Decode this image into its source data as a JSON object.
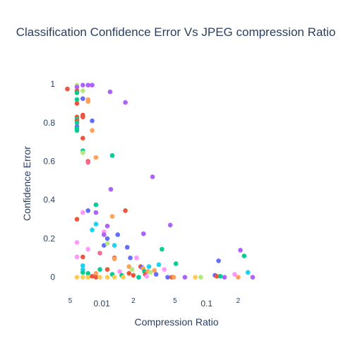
{
  "chart_data": {
    "type": "scatter",
    "title": "Classification Confidence Error Vs JPEG compression Ratio",
    "xlabel": "Compression Ratio",
    "ylabel": "Confidence Error",
    "x_scale": "log",
    "xlim": [
      0.0037,
      0.72
    ],
    "ylim": [
      -0.1,
      1.07
    ],
    "x_ticks": [
      {
        "value": 0.005,
        "label": "5",
        "minor": true
      },
      {
        "value": 0.01,
        "label": "0.01",
        "minor": false
      },
      {
        "value": 0.02,
        "label": "2",
        "minor": true
      },
      {
        "value": 0.05,
        "label": "5",
        "minor": true
      },
      {
        "value": 0.1,
        "label": "0.1",
        "minor": false
      },
      {
        "value": 0.2,
        "label": "2",
        "minor": true
      }
    ],
    "y_ticks": [
      {
        "value": 0,
        "label": "0"
      },
      {
        "value": 0.2,
        "label": "0.2"
      },
      {
        "value": 0.4,
        "label": "0.4"
      },
      {
        "value": 0.6,
        "label": "0.6"
      },
      {
        "value": 0.8,
        "label": "0.8"
      },
      {
        "value": 1,
        "label": "1"
      }
    ],
    "grid": false,
    "legend": "none",
    "colors": {
      "red": "#EF553B",
      "blue": "#636EFA",
      "green": "#00CC96",
      "purple": "#AB63FA",
      "orange": "#FFA15A",
      "cyan": "#19D3F3",
      "pink": "#FF6692",
      "lightgreen": "#B6E880",
      "magenta": "#FF97FF",
      "yellow": "#FECB52"
    },
    "points": [
      {
        "x": 0.0047,
        "y": 0.975,
        "c": "red"
      },
      {
        "x": 0.0058,
        "y": 0.995,
        "c": "lightgreen"
      },
      {
        "x": 0.0058,
        "y": 0.985,
        "c": "purple"
      },
      {
        "x": 0.0058,
        "y": 0.965,
        "c": "red"
      },
      {
        "x": 0.0058,
        "y": 0.955,
        "c": "green"
      },
      {
        "x": 0.0058,
        "y": 0.92,
        "c": "green"
      },
      {
        "x": 0.0058,
        "y": 0.9,
        "c": "red"
      },
      {
        "x": 0.0058,
        "y": 0.83,
        "c": "red"
      },
      {
        "x": 0.0058,
        "y": 0.82,
        "c": "green"
      },
      {
        "x": 0.0058,
        "y": 0.81,
        "c": "red"
      },
      {
        "x": 0.0058,
        "y": 0.8,
        "c": "green"
      },
      {
        "x": 0.0058,
        "y": 0.78,
        "c": "blue"
      },
      {
        "x": 0.0058,
        "y": 0.77,
        "c": "green"
      },
      {
        "x": 0.0058,
        "y": 0.76,
        "c": "green"
      },
      {
        "x": 0.0058,
        "y": 0.3,
        "c": "red"
      },
      {
        "x": 0.0058,
        "y": 0.18,
        "c": "magenta"
      },
      {
        "x": 0.0058,
        "y": 0.105,
        "c": "magenta"
      },
      {
        "x": 0.0058,
        "y": 0.0,
        "c": "yellow"
      },
      {
        "x": 0.0066,
        "y": 0.995,
        "c": "purple"
      },
      {
        "x": 0.0066,
        "y": 0.965,
        "c": "lightgreen"
      },
      {
        "x": 0.0066,
        "y": 0.925,
        "c": "blue"
      },
      {
        "x": 0.0066,
        "y": 0.84,
        "c": "red"
      },
      {
        "x": 0.0066,
        "y": 0.83,
        "c": "red"
      },
      {
        "x": 0.0066,
        "y": 0.72,
        "c": "red"
      },
      {
        "x": 0.0066,
        "y": 0.655,
        "c": "green"
      },
      {
        "x": 0.0066,
        "y": 0.645,
        "c": "lightgreen"
      },
      {
        "x": 0.0066,
        "y": 0.335,
        "c": "magenta"
      },
      {
        "x": 0.0066,
        "y": 0.105,
        "c": "red"
      },
      {
        "x": 0.0066,
        "y": 0.06,
        "c": "cyan"
      },
      {
        "x": 0.0066,
        "y": 0.04,
        "c": "cyan"
      },
      {
        "x": 0.0066,
        "y": 0.025,
        "c": "green"
      },
      {
        "x": 0.0066,
        "y": 0.0,
        "c": "yellow"
      },
      {
        "x": 0.0074,
        "y": 0.995,
        "c": "purple"
      },
      {
        "x": 0.0074,
        "y": 0.92,
        "c": "orange"
      },
      {
        "x": 0.0074,
        "y": 0.91,
        "c": "orange"
      },
      {
        "x": 0.0074,
        "y": 0.6,
        "c": "red"
      },
      {
        "x": 0.0074,
        "y": 0.595,
        "c": "pink"
      },
      {
        "x": 0.0074,
        "y": 0.345,
        "c": "blue"
      },
      {
        "x": 0.0074,
        "y": 0.145,
        "c": "magenta"
      },
      {
        "x": 0.0074,
        "y": 0.02,
        "c": "green"
      },
      {
        "x": 0.0074,
        "y": 0.0,
        "c": "yellow"
      },
      {
        "x": 0.0081,
        "y": 0.995,
        "c": "purple"
      },
      {
        "x": 0.0081,
        "y": 0.81,
        "c": "blue"
      },
      {
        "x": 0.0081,
        "y": 0.76,
        "c": "orange"
      },
      {
        "x": 0.0081,
        "y": 0.245,
        "c": "cyan"
      },
      {
        "x": 0.0081,
        "y": 0.005,
        "c": "red"
      },
      {
        "x": 0.0088,
        "y": 0.62,
        "c": "orange"
      },
      {
        "x": 0.0088,
        "y": 0.375,
        "c": "green"
      },
      {
        "x": 0.0088,
        "y": 0.335,
        "c": "purple"
      },
      {
        "x": 0.0088,
        "y": 0.275,
        "c": "cyan"
      },
      {
        "x": 0.0088,
        "y": 0.02,
        "c": "orange"
      },
      {
        "x": 0.0088,
        "y": 0.0,
        "c": "red"
      },
      {
        "x": 0.0096,
        "y": 0.125,
        "c": "pink"
      },
      {
        "x": 0.0096,
        "y": 0.04,
        "c": "green"
      },
      {
        "x": 0.0096,
        "y": 0.0,
        "c": "yellow"
      },
      {
        "x": 0.0105,
        "y": 0.235,
        "c": "magenta"
      },
      {
        "x": 0.0105,
        "y": 0.22,
        "c": "purple"
      },
      {
        "x": 0.0105,
        "y": 0.165,
        "c": "blue"
      },
      {
        "x": 0.0113,
        "y": 0.265,
        "c": "purple"
      },
      {
        "x": 0.0113,
        "y": 0.2,
        "c": "blue"
      },
      {
        "x": 0.0113,
        "y": 0.175,
        "c": "lightgreen"
      },
      {
        "x": 0.0113,
        "y": 0.04,
        "c": "red"
      },
      {
        "x": 0.0113,
        "y": 0.0,
        "c": "yellow"
      },
      {
        "x": 0.012,
        "y": 0.96,
        "c": "purple"
      },
      {
        "x": 0.0122,
        "y": 0.455,
        "c": "purple"
      },
      {
        "x": 0.0126,
        "y": 0.63,
        "c": "green"
      },
      {
        "x": 0.0126,
        "y": 0.315,
        "c": "orange"
      },
      {
        "x": 0.0126,
        "y": 0.015,
        "c": "green"
      },
      {
        "x": 0.0132,
        "y": 0.165,
        "c": "cyan"
      },
      {
        "x": 0.0132,
        "y": 0.1,
        "c": "red"
      },
      {
        "x": 0.0132,
        "y": 0.095,
        "c": "orange"
      },
      {
        "x": 0.0132,
        "y": 0.0,
        "c": "yellow"
      },
      {
        "x": 0.0142,
        "y": 0.22,
        "c": "blue"
      },
      {
        "x": 0.0148,
        "y": 0.03,
        "c": "magenta"
      },
      {
        "x": 0.0155,
        "y": 0.01,
        "c": "green"
      },
      {
        "x": 0.016,
        "y": 0.0,
        "c": "yellow"
      },
      {
        "x": 0.0168,
        "y": 0.905,
        "c": "purple"
      },
      {
        "x": 0.0168,
        "y": 0.345,
        "c": "red"
      },
      {
        "x": 0.0175,
        "y": 0.155,
        "c": "blue"
      },
      {
        "x": 0.0182,
        "y": 0.055,
        "c": "orange"
      },
      {
        "x": 0.0182,
        "y": 0.02,
        "c": "red"
      },
      {
        "x": 0.0187,
        "y": 0.1,
        "c": "blue"
      },
      {
        "x": 0.0195,
        "y": 0.04,
        "c": "lightgreen"
      },
      {
        "x": 0.02,
        "y": 0.01,
        "c": "red"
      },
      {
        "x": 0.0215,
        "y": 0.1,
        "c": "magenta"
      },
      {
        "x": 0.0225,
        "y": 0.0,
        "c": "green"
      },
      {
        "x": 0.0235,
        "y": 0.055,
        "c": "red"
      },
      {
        "x": 0.0242,
        "y": 0.05,
        "c": "blue"
      },
      {
        "x": 0.0248,
        "y": 0.045,
        "c": "orange"
      },
      {
        "x": 0.025,
        "y": 0.225,
        "c": "purple"
      },
      {
        "x": 0.0255,
        "y": 0.03,
        "c": "green"
      },
      {
        "x": 0.026,
        "y": 0.015,
        "c": "red"
      },
      {
        "x": 0.0268,
        "y": 0.005,
        "c": "magenta"
      },
      {
        "x": 0.0275,
        "y": 0.03,
        "c": "orange"
      },
      {
        "x": 0.0282,
        "y": 0.055,
        "c": "cyan"
      },
      {
        "x": 0.0292,
        "y": 0.025,
        "c": "lightgreen"
      },
      {
        "x": 0.0305,
        "y": 0.52,
        "c": "purple"
      },
      {
        "x": 0.0318,
        "y": 0.035,
        "c": "orange"
      },
      {
        "x": 0.033,
        "y": 0.015,
        "c": "blue"
      },
      {
        "x": 0.035,
        "y": 0.065,
        "c": "cyan"
      },
      {
        "x": 0.0375,
        "y": 0.145,
        "c": "green"
      },
      {
        "x": 0.0395,
        "y": 0.04,
        "c": "magenta"
      },
      {
        "x": 0.0425,
        "y": 0.0,
        "c": "blue"
      },
      {
        "x": 0.045,
        "y": 0.27,
        "c": "purple"
      },
      {
        "x": 0.0465,
        "y": 0.0,
        "c": "red"
      },
      {
        "x": 0.0485,
        "y": 0.0,
        "c": "orange"
      },
      {
        "x": 0.051,
        "y": 0.07,
        "c": "green"
      },
      {
        "x": 0.062,
        "y": 0.0,
        "c": "purple"
      },
      {
        "x": 0.078,
        "y": 0.0,
        "c": "yellow"
      },
      {
        "x": 0.088,
        "y": 0.0,
        "c": "lightgreen"
      },
      {
        "x": 0.12,
        "y": 0.01,
        "c": "blue"
      },
      {
        "x": 0.125,
        "y": 0.005,
        "c": "red"
      },
      {
        "x": 0.13,
        "y": 0.085,
        "c": "blue"
      },
      {
        "x": 0.135,
        "y": 0.005,
        "c": "green"
      },
      {
        "x": 0.148,
        "y": 0.0,
        "c": "purple"
      },
      {
        "x": 0.185,
        "y": 0.015,
        "c": "magenta"
      },
      {
        "x": 0.2,
        "y": 0.0,
        "c": "orange"
      },
      {
        "x": 0.21,
        "y": 0.14,
        "c": "purple"
      },
      {
        "x": 0.228,
        "y": 0.11,
        "c": "green"
      },
      {
        "x": 0.248,
        "y": 0.025,
        "c": "cyan"
      },
      {
        "x": 0.275,
        "y": 0.0,
        "c": "purple"
      }
    ]
  }
}
